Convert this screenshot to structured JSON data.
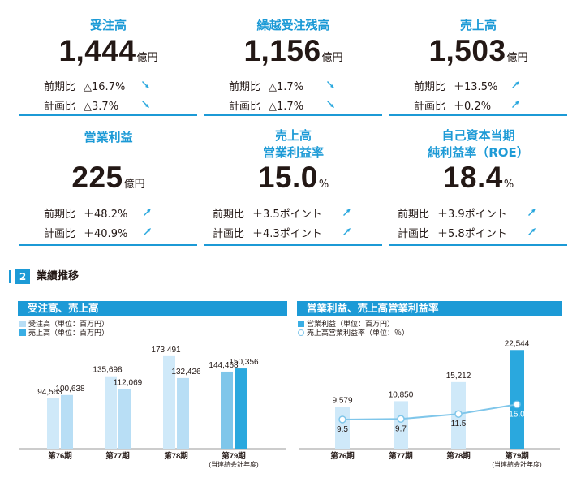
{
  "colors": {
    "accent": "#1c9ad6",
    "order_bar": "#b8def5",
    "sales_bar": "#3aaee4",
    "line": "#7fc6ea",
    "lightbar": "#cfe9f9",
    "highlight": "#2aa8de"
  },
  "kpis": [
    {
      "title": "受注高",
      "value": "1,444",
      "unit": "億円",
      "rows": [
        {
          "label": "前期比",
          "value": "△16.7%",
          "dir": "down"
        },
        {
          "label": "計画比",
          "value": "△3.7%",
          "dir": "down"
        }
      ]
    },
    {
      "title": "繰越受注残高",
      "value": "1,156",
      "unit": "億円",
      "rows": [
        {
          "label": "前期比",
          "value": "△1.7%",
          "dir": "down"
        },
        {
          "label": "計画比",
          "value": "△1.7%",
          "dir": "down"
        }
      ]
    },
    {
      "title": "売上高",
      "value": "1,503",
      "unit": "億円",
      "rows": [
        {
          "label": "前期比",
          "value": "＋13.5%",
          "dir": "up"
        },
        {
          "label": "計画比",
          "value": "＋0.2%",
          "dir": "up"
        }
      ]
    },
    {
      "title": "営業利益",
      "value": "225",
      "unit": "億円",
      "rows": [
        {
          "label": "前期比",
          "value": "＋48.2%",
          "dir": "up"
        },
        {
          "label": "計画比",
          "value": "＋40.9%",
          "dir": "up"
        }
      ]
    },
    {
      "title": "売上高\n営業利益率",
      "value": "15.0",
      "unit": "%",
      "rows": [
        {
          "label": "前期比",
          "value": "＋3.5ポイント",
          "dir": "up"
        },
        {
          "label": "計画比",
          "value": "＋4.3ポイント",
          "dir": "up"
        }
      ]
    },
    {
      "title": "自己資本当期\n純利益率（ROE）",
      "value": "18.4",
      "unit": "%",
      "rows": [
        {
          "label": "前期比",
          "value": "＋3.9ポイント",
          "dir": "up"
        },
        {
          "label": "計画比",
          "value": "＋5.8ポイント",
          "dir": "up"
        }
      ]
    }
  ],
  "section": {
    "number": "2",
    "title": "業績推移"
  },
  "chart_data": [
    {
      "type": "bar",
      "title": "受注高、売上高",
      "categories": [
        "第76期",
        "第77期",
        "第78期",
        "第79期"
      ],
      "category_notes": [
        "",
        "",
        "",
        "(当連結会計年度)"
      ],
      "series": [
        {
          "name": "受注高（単位：百万円）",
          "values": [
            94563,
            135698,
            173491,
            144468
          ]
        },
        {
          "name": "売上高（単位：百万円）",
          "values": [
            100638,
            112069,
            132426,
            150356
          ]
        }
      ],
      "value_labels": [
        [
          "94,563",
          "135,698",
          "173,491",
          "144,468"
        ],
        [
          "100,638",
          "112,069",
          "132,426",
          "150,356"
        ]
      ],
      "ylim": [
        0,
        190000
      ]
    },
    {
      "type": "bar",
      "title": "営業利益、売上高営業利益率",
      "categories": [
        "第76期",
        "第77期",
        "第78期",
        "第79期"
      ],
      "category_notes": [
        "",
        "",
        "",
        "(当連結会計年度)"
      ],
      "series": [
        {
          "name": "営業利益（単位：百万円）",
          "values": [
            9579,
            10850,
            15212,
            22544
          ],
          "labels": [
            "9,579",
            "10,850",
            "15,212",
            "22,544"
          ]
        },
        {
          "name": "売上高営業利益率（単位：％）",
          "type": "line",
          "values": [
            9.5,
            9.7,
            11.5,
            15.0
          ],
          "labels": [
            "9.5",
            "9.7",
            "11.5",
            "15.0"
          ]
        }
      ],
      "ylim": [
        0,
        25000
      ],
      "y2lim": [
        0,
        40
      ]
    }
  ]
}
